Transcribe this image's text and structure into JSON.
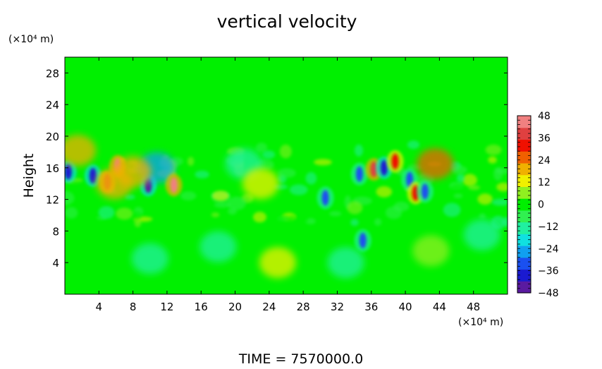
{
  "chart_data": {
    "type": "heatmap",
    "title": "vertical velocity",
    "ylabel": "Height",
    "y_unit_label": "(×10⁴ m)",
    "x_unit_label": "(×10⁴ m)",
    "footer": "TIME  =  7570000.0",
    "xlim": [
      0,
      52
    ],
    "ylim": [
      0,
      30
    ],
    "x_ticks": [
      "4",
      "8",
      "12",
      "16",
      "20",
      "24",
      "28",
      "32",
      "36",
      "40",
      "44",
      "48"
    ],
    "x_tick_values": [
      4,
      8,
      12,
      16,
      20,
      24,
      28,
      32,
      36,
      40,
      44,
      48
    ],
    "y_ticks": [
      "4",
      "8",
      "12",
      "16",
      "20",
      "24",
      "28"
    ],
    "y_tick_values": [
      4,
      8,
      12,
      16,
      20,
      24,
      28
    ],
    "colorbar": {
      "range": [
        -48,
        48
      ],
      "tick_labels": [
        "48",
        "36",
        "24",
        "12",
        "0",
        "−12",
        "−24",
        "−36",
        "−48"
      ],
      "tick_values": [
        48,
        36,
        24,
        12,
        0,
        -12,
        -24,
        -36,
        -48
      ],
      "colors": [
        "#5a1aa0",
        "#1a1ad0",
        "#1a50f0",
        "#10a0f0",
        "#10e0e0",
        "#20f0a0",
        "#30f050",
        "#00f000",
        "#90f020",
        "#f0f000",
        "#f0b000",
        "#f06000",
        "#f01000",
        "#e04040",
        "#f08080"
      ]
    },
    "background_color": "#00f000",
    "features": [
      {
        "x": 0.4,
        "y": 15.5,
        "value": -38
      },
      {
        "x": 3.3,
        "y": 15.0,
        "value": -36
      },
      {
        "x": 5.0,
        "y": 14.2,
        "value": 38
      },
      {
        "x": 6.2,
        "y": 16.2,
        "value": 42
      },
      {
        "x": 5.8,
        "y": 14.0,
        "value": 22
      },
      {
        "x": 9.8,
        "y": 13.8,
        "value": -44
      },
      {
        "x": 10.8,
        "y": 16.0,
        "value": -24
      },
      {
        "x": 12.8,
        "y": 13.8,
        "value": 42
      },
      {
        "x": 8.0,
        "y": 15.5,
        "value": 18
      },
      {
        "x": 30.6,
        "y": 12.2,
        "value": -34
      },
      {
        "x": 34.6,
        "y": 15.2,
        "value": -30
      },
      {
        "x": 35.0,
        "y": 6.8,
        "value": -30
      },
      {
        "x": 36.3,
        "y": 15.8,
        "value": 38
      },
      {
        "x": 37.5,
        "y": 16.0,
        "value": -40
      },
      {
        "x": 38.8,
        "y": 16.8,
        "value": 30
      },
      {
        "x": 40.5,
        "y": 14.5,
        "value": -34
      },
      {
        "x": 41.2,
        "y": 12.8,
        "value": 34
      },
      {
        "x": 42.3,
        "y": 13.0,
        "value": -34
      },
      {
        "x": 43.5,
        "y": 16.5,
        "value": 24
      },
      {
        "x": 1.5,
        "y": 18.2,
        "value": 20
      },
      {
        "x": 25.0,
        "y": 4.0,
        "value": 10
      },
      {
        "x": 43.0,
        "y": 5.5,
        "value": 6
      },
      {
        "x": 10.0,
        "y": 4.5,
        "value": -14
      },
      {
        "x": 18.0,
        "y": 6.0,
        "value": -12
      },
      {
        "x": 33.0,
        "y": 4.0,
        "value": -16
      },
      {
        "x": 49.0,
        "y": 7.5,
        "value": -16
      },
      {
        "x": 21.0,
        "y": 16.5,
        "value": -12
      },
      {
        "x": 23.0,
        "y": 14.0,
        "value": 14
      }
    ]
  }
}
